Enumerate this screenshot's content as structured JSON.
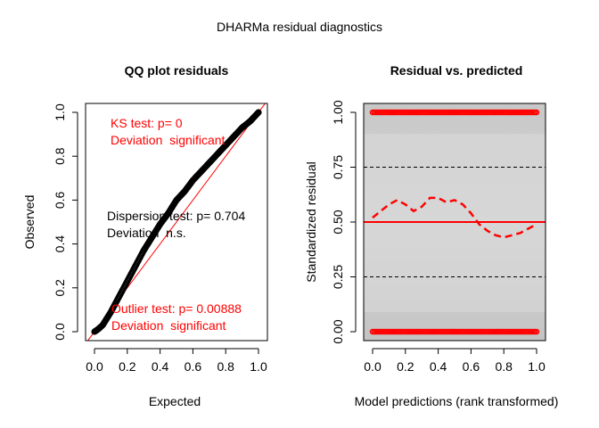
{
  "figure_title": "DHARMa residual diagnostics",
  "chart_data": [
    {
      "type": "scatter",
      "title": "QQ plot residuals",
      "xlabel": "Expected",
      "ylabel": "Observed",
      "xlim": [
        0,
        1
      ],
      "ylim": [
        0,
        1
      ],
      "x_ticks": [
        "0.0",
        "0.2",
        "0.4",
        "0.6",
        "0.8",
        "1.0"
      ],
      "y_ticks": [
        "0.0",
        "0.2",
        "0.4",
        "0.6",
        "0.8",
        "1.0"
      ],
      "reference_line": "y = x",
      "qq_points": {
        "x": [
          0,
          0.02,
          0.05,
          0.1,
          0.15,
          0.2,
          0.25,
          0.3,
          0.35,
          0.4,
          0.45,
          0.5,
          0.55,
          0.6,
          0.65,
          0.7,
          0.75,
          0.8,
          0.85,
          0.9,
          0.95,
          1.0
        ],
        "y": [
          0,
          0.01,
          0.03,
          0.09,
          0.16,
          0.23,
          0.3,
          0.37,
          0.43,
          0.49,
          0.54,
          0.6,
          0.64,
          0.69,
          0.73,
          0.77,
          0.81,
          0.85,
          0.89,
          0.93,
          0.96,
          1.0
        ]
      },
      "annotations": {
        "ks_test": "KS test: p= 0",
        "ks_result": "Deviation  significant",
        "dispersion_test": "Dispersion test: p= 0.704",
        "dispersion_result": "Deviation  n.s.",
        "outlier_test": "Outlier test: p= 0.00888",
        "outlier_result": "Deviation  significant"
      },
      "colors": {
        "points": "#000000",
        "reference": "#ff0000",
        "significant_text": "#ff0000",
        "ns_text": "#000000"
      }
    },
    {
      "type": "scatter",
      "title": "Residual vs. predicted",
      "xlabel": "Model predictions (rank transformed)",
      "ylabel": "Standardized residual",
      "xlim": [
        0,
        1
      ],
      "ylim": [
        0,
        1
      ],
      "x_ticks": [
        "0.0",
        "0.2",
        "0.4",
        "0.6",
        "0.8",
        "1.0"
      ],
      "y_ticks": [
        "0.00",
        "0.25",
        "0.50",
        "0.75",
        "1.00"
      ],
      "background": "grey density shading",
      "points_top": {
        "y": 1.0,
        "x_range": [
          0,
          1
        ]
      },
      "points_bottom": {
        "y": 0.0,
        "x_range": [
          0,
          1
        ]
      },
      "dashed_lines": [
        0.25,
        0.75
      ],
      "solid_line": 0.5,
      "quantile_curve": {
        "x": [
          0,
          0.05,
          0.1,
          0.15,
          0.2,
          0.25,
          0.3,
          0.35,
          0.4,
          0.45,
          0.5,
          0.55,
          0.6,
          0.65,
          0.7,
          0.75,
          0.8,
          0.85,
          0.9,
          0.95,
          1.0
        ],
        "y": [
          0.52,
          0.55,
          0.58,
          0.6,
          0.58,
          0.55,
          0.57,
          0.61,
          0.61,
          0.59,
          0.6,
          0.58,
          0.54,
          0.49,
          0.46,
          0.44,
          0.43,
          0.44,
          0.45,
          0.47,
          0.49
        ]
      },
      "colors": {
        "points": "#ff0000",
        "lines": "#ff0000",
        "dashed": "#000000"
      }
    }
  ]
}
